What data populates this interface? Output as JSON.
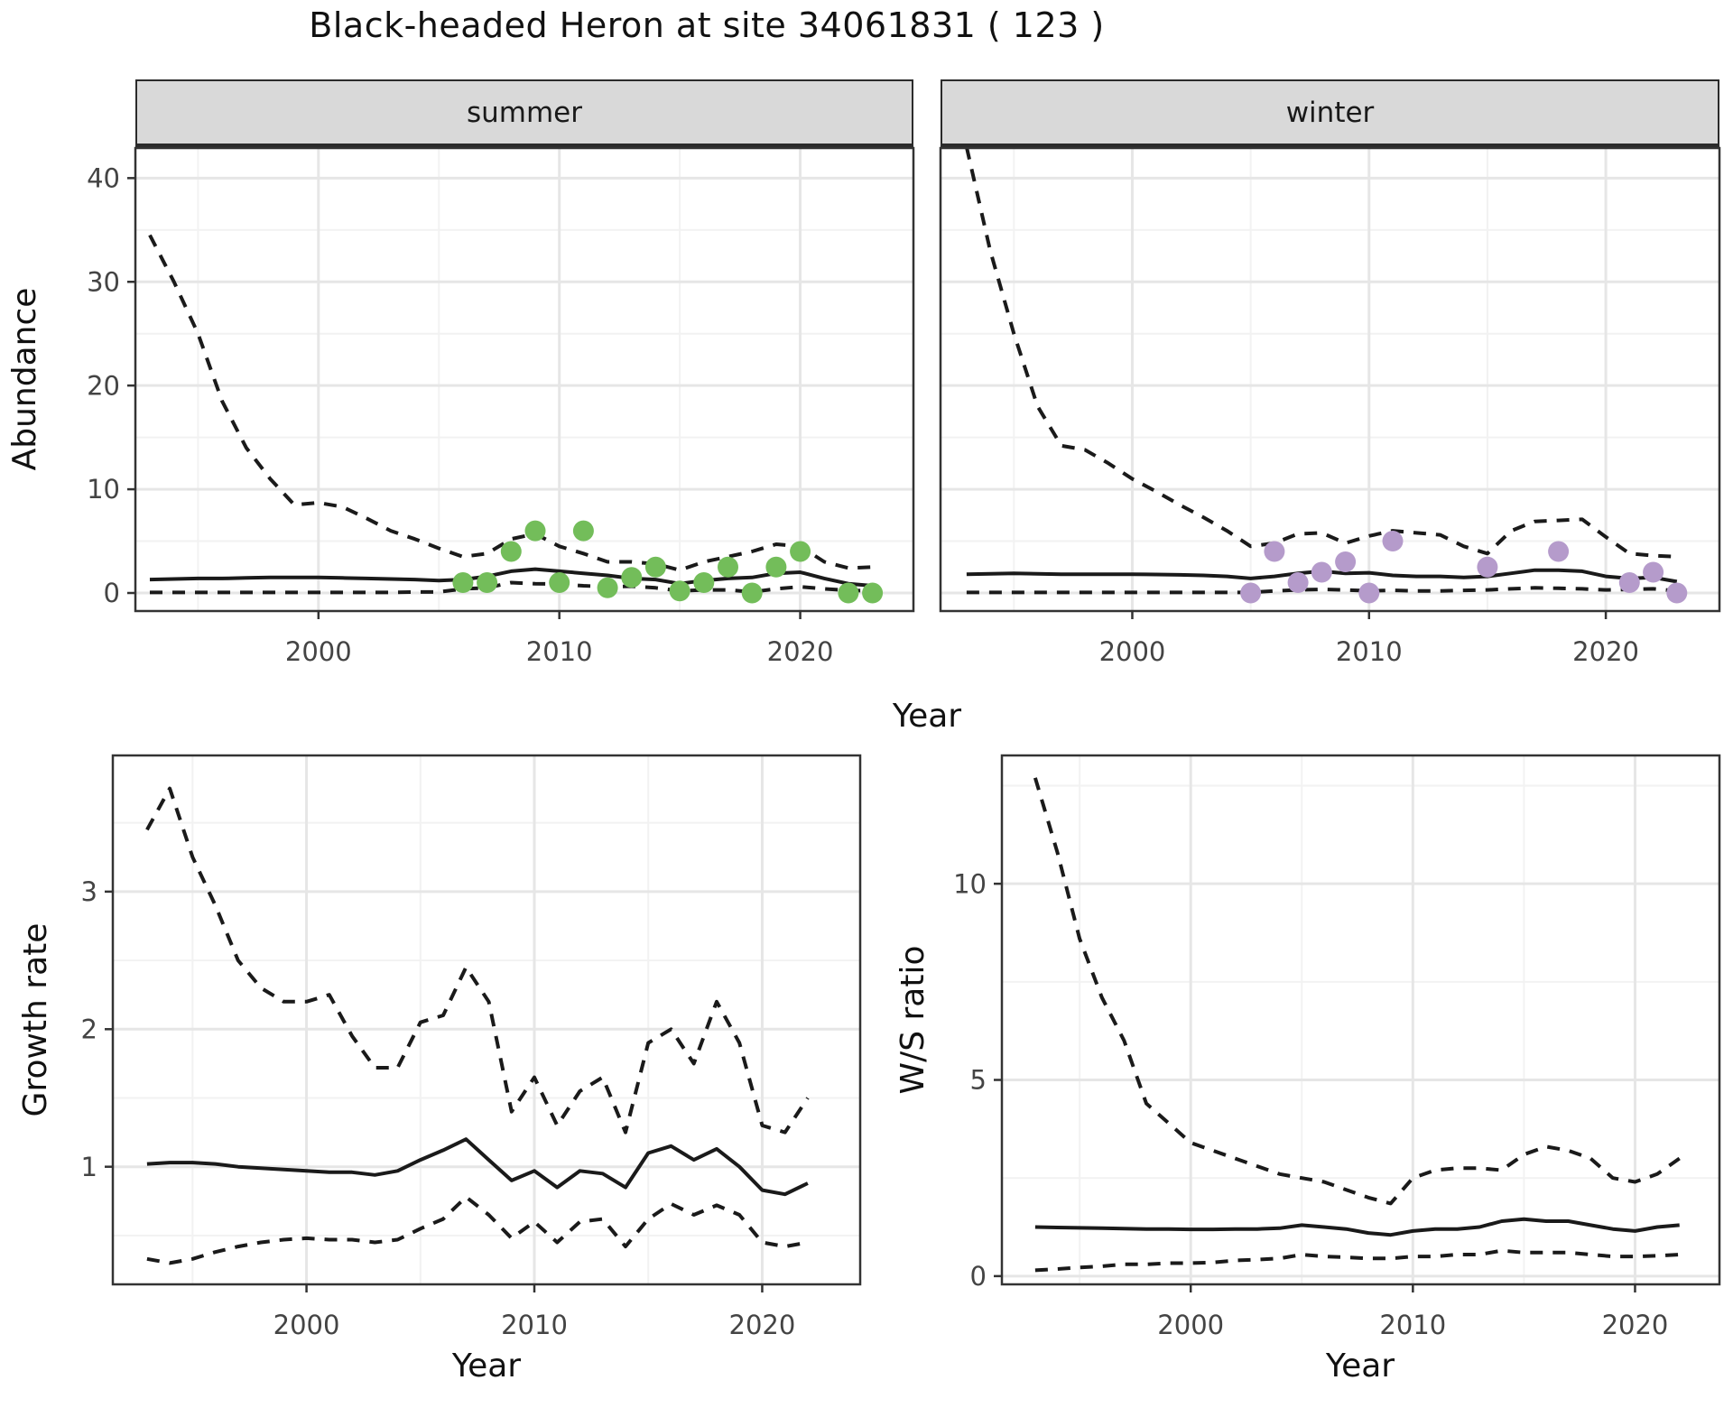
{
  "title": "Black-headed Heron at site 34061831 ( 123 )",
  "facets": [
    "summer",
    "winter"
  ],
  "axes": {
    "abundance": "Abundance",
    "year": "Year",
    "growth": "Growth rate",
    "ws": "W/S ratio"
  },
  "colors": {
    "line": "#1a1a1a",
    "panel_border": "#333333",
    "grid_major": "#e6e6e6",
    "grid_minor": "#f2f2f2",
    "strip_bg": "#d9d9d9",
    "tick_label": "#444444",
    "summer_points": "#73bd5a",
    "winter_points": "#b59bcb"
  },
  "chart_data": [
    {
      "id": "summer",
      "type": "line",
      "facet_label": "summer",
      "ylabel": "Abundance",
      "xlabel": "Year",
      "xlim": [
        1992.4,
        2024.7
      ],
      "ylim": [
        -1.74,
        42.9
      ],
      "xticks": [
        2000,
        2010,
        2020
      ],
      "xticks_minor": [
        1995,
        2005,
        2015
      ],
      "yticks": [
        0,
        10,
        20,
        30,
        40
      ],
      "yticks_minor": [
        5,
        15,
        25,
        35
      ],
      "years": [
        1993,
        1994,
        1995,
        1996,
        1997,
        1998,
        1999,
        2000,
        2001,
        2002,
        2003,
        2004,
        2005,
        2006,
        2007,
        2008,
        2009,
        2010,
        2011,
        2012,
        2013,
        2014,
        2015,
        2016,
        2017,
        2018,
        2019,
        2020,
        2021,
        2022,
        2023
      ],
      "series": {
        "upper_dashed": [
          34.5,
          30,
          25,
          18.5,
          14,
          11,
          8.5,
          8.7,
          8.3,
          7.2,
          6.0,
          5.2,
          4.3,
          3.5,
          3.8,
          5.2,
          5.7,
          4.5,
          3.8,
          3.0,
          3.0,
          2.8,
          2.2,
          3.0,
          3.5,
          4.0,
          4.7,
          4.5,
          3.0,
          2.4,
          2.5
        ],
        "median_solid": [
          1.3,
          1.35,
          1.4,
          1.4,
          1.45,
          1.5,
          1.5,
          1.5,
          1.45,
          1.4,
          1.35,
          1.3,
          1.2,
          1.3,
          1.6,
          2.1,
          2.3,
          2.1,
          1.9,
          1.7,
          1.4,
          1.3,
          0.9,
          1.2,
          1.4,
          1.5,
          1.9,
          2.0,
          1.4,
          0.9,
          0.7
        ],
        "lower_dashed": [
          0.05,
          0.05,
          0.05,
          0.05,
          0.05,
          0.05,
          0.05,
          0.05,
          0.05,
          0.05,
          0.05,
          0.1,
          0.1,
          0.4,
          0.5,
          1.0,
          0.9,
          0.85,
          0.7,
          0.6,
          0.65,
          0.5,
          0.2,
          0.3,
          0.3,
          0.1,
          0.4,
          0.6,
          0.4,
          0.25,
          0.2
        ]
      },
      "points": {
        "years": [
          2006,
          2007,
          2008,
          2009,
          2010,
          2011,
          2012,
          2013,
          2014,
          2015,
          2016,
          2017,
          2018,
          2019,
          2020,
          2022,
          2023
        ],
        "values": [
          1,
          1,
          4,
          6,
          1,
          6,
          0.5,
          1.5,
          2.5,
          0.2,
          1,
          2.5,
          0,
          2.5,
          4,
          0,
          0
        ],
        "color_key": "summer_points"
      }
    },
    {
      "id": "winter",
      "type": "line",
      "facet_label": "winter",
      "ylabel": "Abundance",
      "xlabel": "Year",
      "xlim": [
        1991.9,
        2024.8
      ],
      "ylim": [
        -1.74,
        42.9
      ],
      "xticks": [
        2000,
        2010,
        2020
      ],
      "xticks_minor": [
        1995,
        2005,
        2015
      ],
      "yticks": [
        0,
        10,
        20,
        30,
        40
      ],
      "yticks_minor": [
        5,
        15,
        25,
        35
      ],
      "years": [
        1993,
        1994,
        1995,
        1996,
        1997,
        1998,
        1999,
        2000,
        2001,
        2002,
        2003,
        2004,
        2005,
        2006,
        2007,
        2008,
        2009,
        2010,
        2011,
        2012,
        2013,
        2014,
        2015,
        2016,
        2017,
        2018,
        2019,
        2020,
        2021,
        2022,
        2023
      ],
      "series": {
        "upper_dashed": [
          43,
          33,
          25,
          18,
          14.2,
          13.8,
          12.5,
          11,
          9.8,
          8.5,
          7.3,
          6.0,
          4.5,
          4.8,
          5.7,
          5.8,
          4.8,
          5.5,
          6.0,
          5.8,
          5.6,
          4.5,
          3.8,
          6.0,
          6.9,
          7.0,
          7.1,
          5.4,
          3.8,
          3.6,
          3.5
        ],
        "median_solid": [
          1.8,
          1.85,
          1.9,
          1.85,
          1.8,
          1.8,
          1.8,
          1.8,
          1.78,
          1.75,
          1.7,
          1.6,
          1.4,
          1.6,
          1.9,
          2.1,
          1.9,
          1.95,
          1.7,
          1.6,
          1.6,
          1.5,
          1.6,
          1.9,
          2.2,
          2.2,
          2.1,
          1.6,
          1.4,
          1.5,
          1.1
        ],
        "lower_dashed": [
          0.05,
          0.05,
          0.05,
          0.05,
          0.05,
          0.05,
          0.05,
          0.05,
          0.05,
          0.05,
          0.05,
          0.05,
          0.05,
          0.2,
          0.3,
          0.35,
          0.3,
          0.2,
          0.25,
          0.2,
          0.2,
          0.25,
          0.3,
          0.4,
          0.5,
          0.45,
          0.4,
          0.3,
          0.35,
          0.4,
          0.2
        ]
      },
      "points": {
        "years": [
          2005,
          2006,
          2007,
          2008,
          2009,
          2010,
          2011,
          2015,
          2018,
          2021,
          2022,
          2023
        ],
        "values": [
          0,
          4,
          1,
          2,
          3,
          0,
          5,
          2.5,
          4,
          1,
          2,
          0
        ],
        "color_key": "winter_points"
      }
    },
    {
      "id": "growth",
      "type": "line",
      "facet_label": "",
      "ylabel": "Growth rate",
      "xlabel": "Year",
      "xlim": [
        1991.5,
        2024.3
      ],
      "ylim": [
        0.145,
        3.99
      ],
      "xticks": [
        2000,
        2010,
        2020
      ],
      "xticks_minor": [
        1995,
        2005,
        2015
      ],
      "yticks": [
        1,
        2,
        3
      ],
      "yticks_minor": [
        0.5,
        1.5,
        2.5,
        3.5
      ],
      "years": [
        1993,
        1994,
        1995,
        1996,
        1997,
        1998,
        1999,
        2000,
        2001,
        2002,
        2003,
        2004,
        2005,
        2006,
        2007,
        2008,
        2009,
        2010,
        2011,
        2012,
        2013,
        2014,
        2015,
        2016,
        2017,
        2018,
        2019,
        2020,
        2021,
        2022
      ],
      "series": {
        "upper_dashed": [
          3.45,
          3.75,
          3.25,
          2.9,
          2.5,
          2.3,
          2.2,
          2.2,
          2.25,
          1.95,
          1.72,
          1.72,
          2.05,
          2.1,
          2.45,
          2.2,
          1.4,
          1.65,
          1.3,
          1.55,
          1.65,
          1.25,
          1.9,
          2.0,
          1.75,
          2.2,
          1.9,
          1.3,
          1.25,
          1.5
        ],
        "median_solid": [
          1.02,
          1.03,
          1.03,
          1.02,
          1.0,
          0.99,
          0.98,
          0.97,
          0.96,
          0.96,
          0.94,
          0.97,
          1.05,
          1.12,
          1.2,
          1.05,
          0.9,
          0.97,
          0.85,
          0.97,
          0.95,
          0.85,
          1.1,
          1.15,
          1.05,
          1.13,
          1.0,
          0.83,
          0.8,
          0.88
        ],
        "lower_dashed": [
          0.33,
          0.3,
          0.33,
          0.38,
          0.42,
          0.45,
          0.47,
          0.48,
          0.47,
          0.47,
          0.45,
          0.47,
          0.55,
          0.62,
          0.78,
          0.65,
          0.48,
          0.6,
          0.45,
          0.6,
          0.62,
          0.42,
          0.62,
          0.73,
          0.65,
          0.72,
          0.65,
          0.45,
          0.42,
          0.45
        ]
      }
    },
    {
      "id": "ws",
      "type": "line",
      "facet_label": "",
      "ylabel": "W/S ratio",
      "xlabel": "Year",
      "xlim": [
        1991.5,
        2023.8
      ],
      "ylim": [
        -0.21,
        13.27
      ],
      "xticks": [
        2000,
        2010,
        2020
      ],
      "xticks_minor": [
        1995,
        2005,
        2015
      ],
      "yticks": [
        0,
        5,
        10
      ],
      "yticks_minor": [
        2.5,
        7.5,
        12.5
      ],
      "years": [
        1993,
        1994,
        1995,
        1996,
        1997,
        1998,
        1999,
        2000,
        2001,
        2002,
        2003,
        2004,
        2005,
        2006,
        2007,
        2008,
        2009,
        2010,
        2011,
        2012,
        2013,
        2014,
        2015,
        2016,
        2017,
        2018,
        2019,
        2020,
        2021,
        2022
      ],
      "series": {
        "upper_dashed": [
          12.7,
          10.8,
          8.6,
          7.1,
          6.0,
          4.4,
          3.9,
          3.4,
          3.2,
          3.0,
          2.8,
          2.6,
          2.5,
          2.4,
          2.2,
          2.0,
          1.85,
          2.5,
          2.7,
          2.75,
          2.75,
          2.7,
          3.1,
          3.3,
          3.2,
          3.0,
          2.5,
          2.4,
          2.6,
          3.0
        ],
        "median_solid": [
          1.25,
          1.24,
          1.23,
          1.22,
          1.21,
          1.2,
          1.2,
          1.19,
          1.19,
          1.2,
          1.2,
          1.22,
          1.3,
          1.25,
          1.2,
          1.1,
          1.05,
          1.15,
          1.2,
          1.2,
          1.25,
          1.4,
          1.45,
          1.4,
          1.4,
          1.3,
          1.2,
          1.15,
          1.25,
          1.3
        ],
        "lower_dashed": [
          0.15,
          0.18,
          0.22,
          0.25,
          0.3,
          0.3,
          0.33,
          0.33,
          0.35,
          0.4,
          0.42,
          0.45,
          0.55,
          0.5,
          0.48,
          0.45,
          0.45,
          0.5,
          0.5,
          0.55,
          0.55,
          0.65,
          0.6,
          0.6,
          0.6,
          0.55,
          0.5,
          0.5,
          0.52,
          0.55
        ]
      }
    }
  ]
}
